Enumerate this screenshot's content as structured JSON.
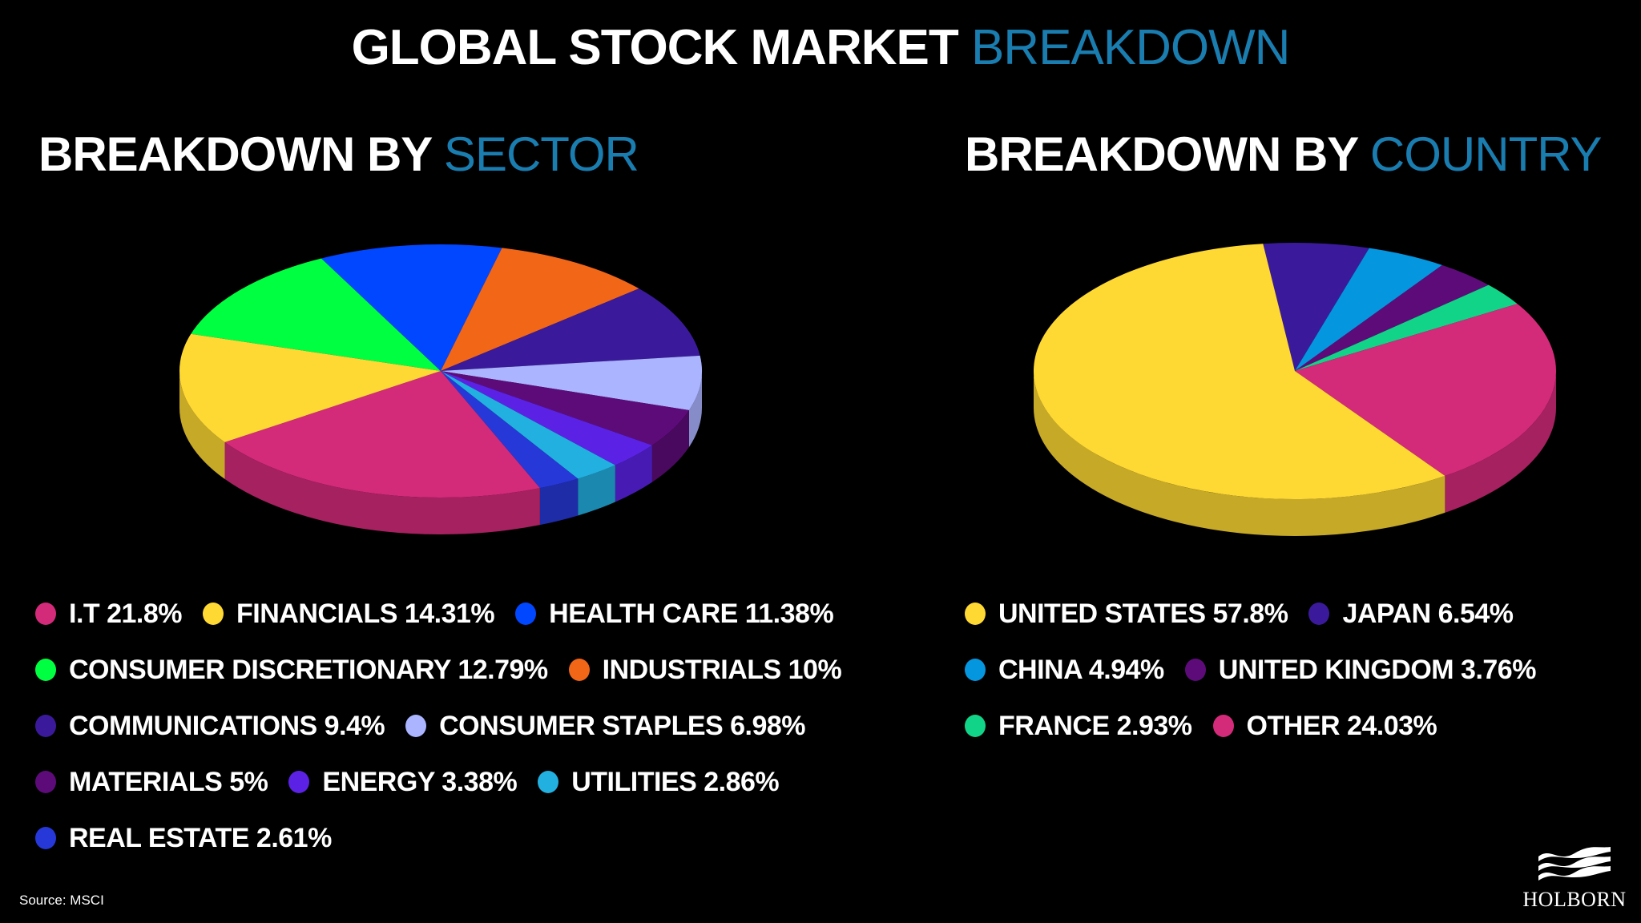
{
  "header": {
    "title_main": "GLOBAL STOCK MARKET",
    "title_accent": "BREAKDOWN"
  },
  "sector_section": {
    "title_main": "BREAKDOWN BY",
    "title_accent": "SECTOR"
  },
  "country_section": {
    "title_main": "BREAKDOWN BY",
    "title_accent": "COUNTRY"
  },
  "colors": {
    "accent": "#1a7db0",
    "background": "#000000"
  },
  "source": "Source: MSCI",
  "logo": {
    "text": "HOLBORN",
    "icon": "waves-icon"
  },
  "chart_data": [
    {
      "type": "pie",
      "title": "BREAKDOWN BY SECTOR",
      "style": "3d",
      "legend_position": "bottom",
      "categories": [
        "I.T",
        "FINANCIALS",
        "HEALTH CARE",
        "CONSUMER DISCRETIONARY",
        "INDUSTRIALS",
        "COMMUNICATIONS",
        "CONSUMER STAPLES",
        "MATERIALS",
        "ENERGY",
        "UTILITIES",
        "REAL ESTATE"
      ],
      "values": [
        21.8,
        14.31,
        11.38,
        12.79,
        10,
        9.4,
        6.98,
        5,
        3.38,
        2.86,
        2.61
      ],
      "labels": [
        "I.T 21.8%",
        "FINANCIALS 14.31%",
        "HEALTH CARE 11.38%",
        "CONSUMER DISCRETIONARY 12.79%",
        "INDUSTRIALS 10%",
        "COMMUNICATIONS 9.4%",
        "CONSUMER STAPLES 6.98%",
        "MATERIALS 5%",
        "ENERGY 3.38%",
        "UTILITIES 2.86%",
        "REAL ESTATE 2.61%"
      ],
      "colors": [
        "#d42a7a",
        "#ffd933",
        "#0047ff",
        "#00ff40",
        "#f26618",
        "#3a1a9a",
        "#aab4ff",
        "#5e0b7a",
        "#5b22e6",
        "#22b0e0",
        "#2638d8"
      ],
      "legend_rows": [
        [
          0,
          1,
          2
        ],
        [
          3,
          4
        ],
        [
          5,
          6
        ],
        [
          7,
          8,
          9
        ],
        [
          10
        ]
      ],
      "draw_order": [
        3,
        2,
        4,
        5,
        6,
        7,
        8,
        9,
        10,
        0,
        1
      ]
    },
    {
      "type": "pie",
      "title": "BREAKDOWN BY COUNTRY",
      "style": "3d",
      "legend_position": "bottom",
      "categories": [
        "UNITED STATES",
        "JAPAN",
        "CHINA",
        "UNITED KINGDOM",
        "FRANCE",
        "OTHER"
      ],
      "values": [
        57.8,
        6.54,
        4.94,
        3.76,
        2.93,
        24.03
      ],
      "labels": [
        "UNITED STATES 57.8%",
        "JAPAN 6.54%",
        "CHINA 4.94%",
        "UNITED KINGDOM 3.76%",
        "FRANCE 2.93%",
        "OTHER 24.03%"
      ],
      "colors": [
        "#ffd933",
        "#3a1a9a",
        "#0596e0",
        "#5e0b7a",
        "#12d488",
        "#d42a7a"
      ],
      "legend_rows": [
        [
          0,
          1
        ],
        [
          2,
          3
        ],
        [
          4,
          5
        ]
      ],
      "draw_order": [
        1,
        2,
        3,
        4,
        5,
        0
      ]
    }
  ]
}
